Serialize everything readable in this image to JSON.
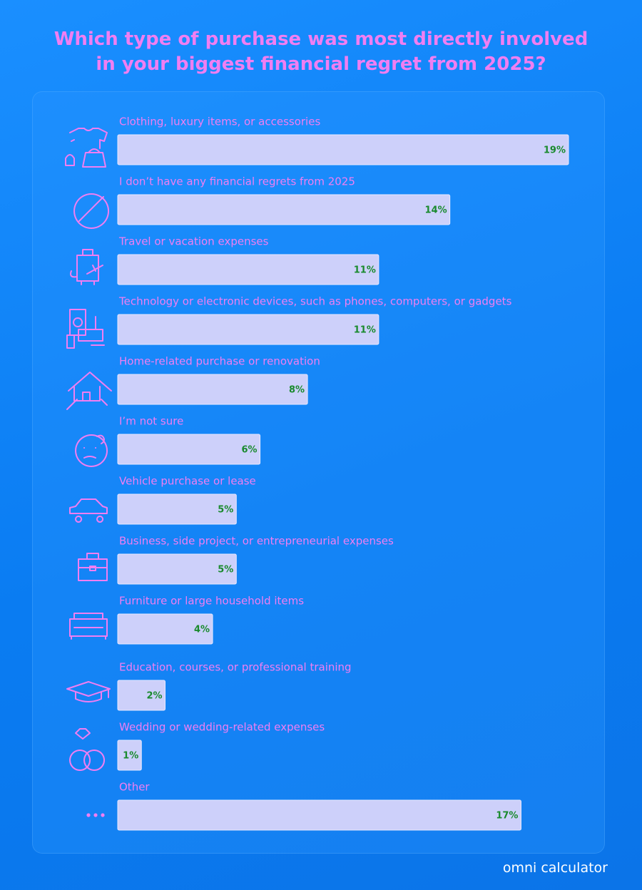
{
  "chart_data": {
    "type": "bar",
    "orientation": "horizontal",
    "title": "Which type of purchase was most directly involved in your biggest financial regret from 2025?",
    "categories": [
      "Clothing, luxury items, or accessories",
      "I don’t have any financial regrets from 2025",
      "Travel or vacation expenses",
      "Technology or electronic devices, such as phones, computers, or gadgets",
      "Home-related purchase or renovation",
      "I’m not sure",
      "Vehicle purchase or lease",
      "Business, side project, or entrepreneurial expenses",
      "Furniture or large household items",
      "Education, courses, or professional training",
      "Wedding or wedding-related expenses",
      "Other"
    ],
    "values": [
      19,
      14,
      11,
      11,
      8,
      6,
      5,
      5,
      4,
      2,
      1,
      17
    ],
    "value_labels": [
      "19%",
      "14%",
      "11%",
      "11%",
      "8%",
      "6%",
      "5%",
      "5%",
      "4%",
      "2%",
      "1%",
      "17%"
    ],
    "color": "#cdd0fa",
    "footer": "omni calculator"
  }
}
